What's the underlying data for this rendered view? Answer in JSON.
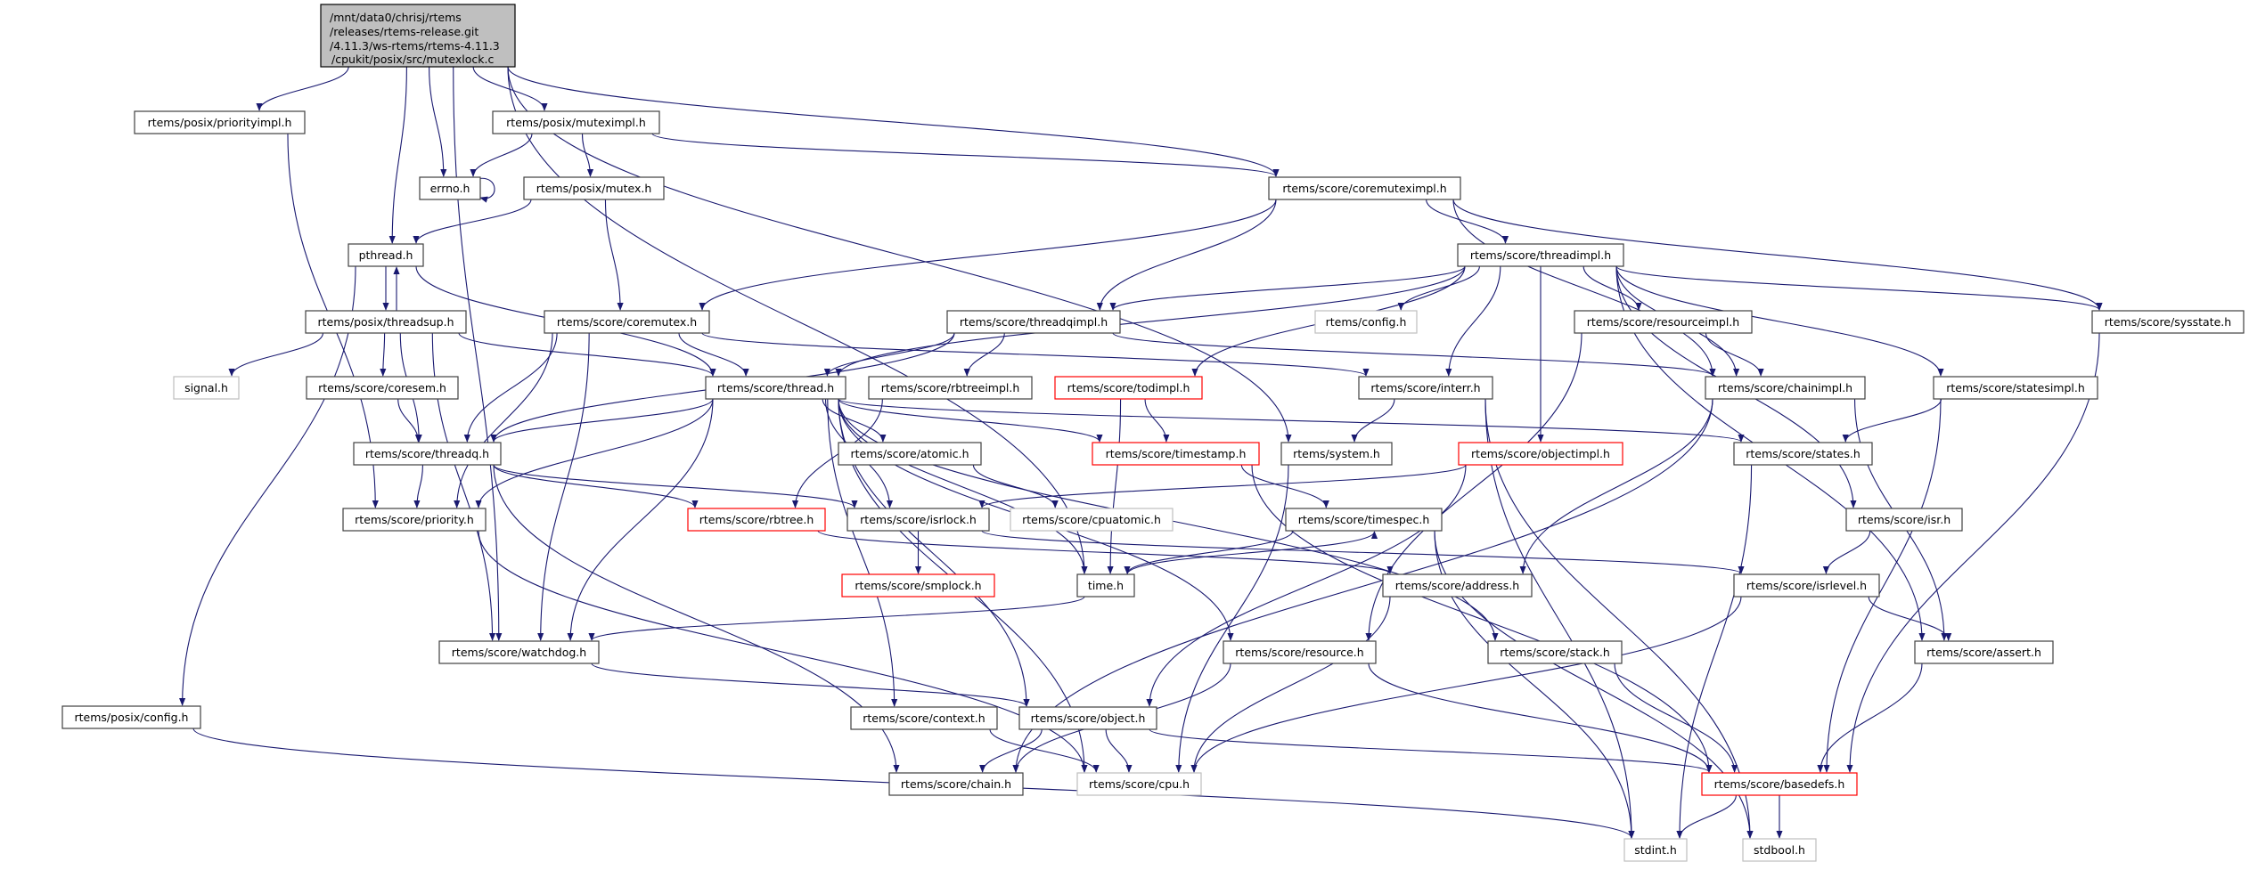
{
  "colors": {
    "edge": "#191970",
    "node_border": "#404040",
    "node_fill": "#ffffff",
    "root_fill": "#bfbfbf",
    "external_border": "#bfbfbf",
    "truncated_border": "#ff0000",
    "background": "#ffffff"
  },
  "graph": {
    "root": {
      "id": "main",
      "lines": [
        "/mnt/data0/chrisj/rtems",
        "/releases/rtems-release.git",
        "/4.11.3/ws-rtems/rtems-4.11.3",
        "/cpukit/posix/src/mutexlock.c"
      ]
    },
    "nodes": [
      {
        "id": "prioritimpl",
        "label": "rtems/posix/priorityimpl.h",
        "style": "normal"
      },
      {
        "id": "muteximpl",
        "label": "rtems/posix/muteximpl.h",
        "style": "normal"
      },
      {
        "id": "errno",
        "label": "errno.h",
        "style": "normal"
      },
      {
        "id": "mutex",
        "label": "rtems/posix/mutex.h",
        "style": "normal"
      },
      {
        "id": "coremuteximpl",
        "label": "rtems/score/coremuteximpl.h",
        "style": "normal"
      },
      {
        "id": "pthread",
        "label": "pthread.h",
        "style": "normal"
      },
      {
        "id": "threadimpl",
        "label": "rtems/score/threadimpl.h",
        "style": "normal"
      },
      {
        "id": "threadsup",
        "label": "rtems/posix/threadsup.h",
        "style": "normal"
      },
      {
        "id": "coremutex",
        "label": "rtems/score/coremutex.h",
        "style": "normal"
      },
      {
        "id": "threadqimpl",
        "label": "rtems/score/threadqimpl.h",
        "style": "normal"
      },
      {
        "id": "config",
        "label": "rtems/config.h",
        "style": "external"
      },
      {
        "id": "resourceimpl",
        "label": "rtems/score/resourceimpl.h",
        "style": "normal"
      },
      {
        "id": "sysstate",
        "label": "rtems/score/sysstate.h",
        "style": "normal"
      },
      {
        "id": "signal",
        "label": "signal.h",
        "style": "external"
      },
      {
        "id": "coresem",
        "label": "rtems/score/coresem.h",
        "style": "normal"
      },
      {
        "id": "thread",
        "label": "rtems/score/thread.h",
        "style": "normal"
      },
      {
        "id": "rbtreeimpl",
        "label": "rtems/score/rbtreeimpl.h",
        "style": "normal"
      },
      {
        "id": "todimpl",
        "label": "rtems/score/todimpl.h",
        "style": "truncated"
      },
      {
        "id": "interr",
        "label": "rtems/score/interr.h",
        "style": "normal"
      },
      {
        "id": "chainimpl",
        "label": "rtems/score/chainimpl.h",
        "style": "normal"
      },
      {
        "id": "statesimpl",
        "label": "rtems/score/statesimpl.h",
        "style": "normal"
      },
      {
        "id": "threadq",
        "label": "rtems/score/threadq.h",
        "style": "normal"
      },
      {
        "id": "atomic",
        "label": "rtems/score/atomic.h",
        "style": "normal"
      },
      {
        "id": "timestamp",
        "label": "rtems/score/timestamp.h",
        "style": "truncated"
      },
      {
        "id": "system",
        "label": "rtems/system.h",
        "style": "normal"
      },
      {
        "id": "objectimpl",
        "label": "rtems/score/objectimpl.h",
        "style": "truncated"
      },
      {
        "id": "states",
        "label": "rtems/score/states.h",
        "style": "normal"
      },
      {
        "id": "priority",
        "label": "rtems/score/priority.h",
        "style": "normal"
      },
      {
        "id": "rbtree",
        "label": "rtems/score/rbtree.h",
        "style": "truncated"
      },
      {
        "id": "isrlock",
        "label": "rtems/score/isrlock.h",
        "style": "normal"
      },
      {
        "id": "cpuatomic",
        "label": "rtems/score/cpuatomic.h",
        "style": "external"
      },
      {
        "id": "timespec",
        "label": "rtems/score/timespec.h",
        "style": "normal"
      },
      {
        "id": "isr",
        "label": "rtems/score/isr.h",
        "style": "normal"
      },
      {
        "id": "smplock",
        "label": "rtems/score/smplock.h",
        "style": "truncated"
      },
      {
        "id": "time",
        "label": "time.h",
        "style": "normal"
      },
      {
        "id": "address",
        "label": "rtems/score/address.h",
        "style": "normal"
      },
      {
        "id": "isrlevel",
        "label": "rtems/score/isrlevel.h",
        "style": "normal"
      },
      {
        "id": "watchdog",
        "label": "rtems/score/watchdog.h",
        "style": "normal"
      },
      {
        "id": "resource",
        "label": "rtems/score/resource.h",
        "style": "normal"
      },
      {
        "id": "stack",
        "label": "rtems/score/stack.h",
        "style": "normal"
      },
      {
        "id": "assert",
        "label": "rtems/score/assert.h",
        "style": "normal"
      },
      {
        "id": "posixconfig",
        "label": "rtems/posix/config.h",
        "style": "normal"
      },
      {
        "id": "context",
        "label": "rtems/score/context.h",
        "style": "normal"
      },
      {
        "id": "object",
        "label": "rtems/score/object.h",
        "style": "normal"
      },
      {
        "id": "chain",
        "label": "rtems/score/chain.h",
        "style": "normal"
      },
      {
        "id": "cpu",
        "label": "rtems/score/cpu.h",
        "style": "external"
      },
      {
        "id": "basedefs",
        "label": "rtems/score/basedefs.h",
        "style": "truncated"
      },
      {
        "id": "stdint",
        "label": "stdint.h",
        "style": "external"
      },
      {
        "id": "stdbool",
        "label": "stdbool.h",
        "style": "external"
      }
    ],
    "edges": [
      [
        "main",
        "prioritimpl"
      ],
      [
        "main",
        "muteximpl"
      ],
      [
        "main",
        "errno"
      ],
      [
        "main",
        "pthread"
      ],
      [
        "main",
        "coremuteximpl"
      ],
      [
        "main",
        "system"
      ],
      [
        "main",
        "time"
      ],
      [
        "main",
        "watchdog"
      ],
      [
        "prioritimpl",
        "priority"
      ],
      [
        "muteximpl",
        "errno"
      ],
      [
        "muteximpl",
        "mutex"
      ],
      [
        "muteximpl",
        "coremuteximpl"
      ],
      [
        "errno",
        "errno"
      ],
      [
        "mutex",
        "pthread"
      ],
      [
        "mutex",
        "coremutex"
      ],
      [
        "pthread",
        "threadsup"
      ],
      [
        "pthread",
        "thread"
      ],
      [
        "pthread",
        "posixconfig"
      ],
      [
        "threadsup",
        "pthread"
      ],
      [
        "threadsup",
        "signal"
      ],
      [
        "threadsup",
        "coresem"
      ],
      [
        "threadsup",
        "thread"
      ],
      [
        "threadsup",
        "threadq"
      ],
      [
        "threadsup",
        "watchdog"
      ],
      [
        "coremutex",
        "thread"
      ],
      [
        "coremutex",
        "threadq"
      ],
      [
        "coremutex",
        "priority"
      ],
      [
        "coremutex",
        "watchdog"
      ],
      [
        "coremutex",
        "interr"
      ],
      [
        "coresem",
        "threadq"
      ],
      [
        "posixconfig",
        "stdint"
      ],
      [
        "coremuteximpl",
        "coremutex"
      ],
      [
        "coremuteximpl",
        "threadqimpl"
      ],
      [
        "coremuteximpl",
        "threadimpl"
      ],
      [
        "coremuteximpl",
        "chainimpl"
      ],
      [
        "coremuteximpl",
        "sysstate"
      ],
      [
        "threadimpl",
        "threadqimpl"
      ],
      [
        "threadimpl",
        "config"
      ],
      [
        "threadimpl",
        "todimpl"
      ],
      [
        "threadimpl",
        "thread"
      ],
      [
        "threadimpl",
        "interr"
      ],
      [
        "threadimpl",
        "objectimpl"
      ],
      [
        "threadimpl",
        "resourceimpl"
      ],
      [
        "threadimpl",
        "chainimpl"
      ],
      [
        "threadimpl",
        "isr"
      ],
      [
        "threadimpl",
        "statesimpl"
      ],
      [
        "threadimpl",
        "sysstate"
      ],
      [
        "threadimpl",
        "assert"
      ],
      [
        "threadqimpl",
        "thread"
      ],
      [
        "threadqimpl",
        "threadq"
      ],
      [
        "threadqimpl",
        "rbtreeimpl"
      ],
      [
        "threadqimpl",
        "chainimpl"
      ],
      [
        "rbtreeimpl",
        "rbtree"
      ],
      [
        "todimpl",
        "timestamp"
      ],
      [
        "todimpl",
        "time"
      ],
      [
        "interr",
        "system"
      ],
      [
        "interr",
        "stdint"
      ],
      [
        "interr",
        "stdbool"
      ],
      [
        "resourceimpl",
        "chainimpl"
      ],
      [
        "resourceimpl",
        "resource"
      ],
      [
        "chainimpl",
        "address"
      ],
      [
        "chainimpl",
        "chain"
      ],
      [
        "chainimpl",
        "assert"
      ],
      [
        "statesimpl",
        "states"
      ],
      [
        "statesimpl",
        "basedefs"
      ],
      [
        "sysstate",
        "basedefs"
      ],
      [
        "thread",
        "threadq"
      ],
      [
        "thread",
        "priority"
      ],
      [
        "thread",
        "watchdog"
      ],
      [
        "thread",
        "atomic"
      ],
      [
        "thread",
        "isrlock"
      ],
      [
        "thread",
        "timestamp"
      ],
      [
        "thread",
        "states"
      ],
      [
        "thread",
        "object"
      ],
      [
        "thread",
        "context"
      ],
      [
        "thread",
        "resource"
      ],
      [
        "thread",
        "time"
      ],
      [
        "thread",
        "cpu"
      ],
      [
        "thread",
        "stack"
      ],
      [
        "threadq",
        "priority"
      ],
      [
        "threadq",
        "rbtree"
      ],
      [
        "threadq",
        "isrlock"
      ],
      [
        "threadq",
        "chain"
      ],
      [
        "priority",
        "cpu"
      ],
      [
        "atomic",
        "cpuatomic"
      ],
      [
        "timestamp",
        "timespec"
      ],
      [
        "timestamp",
        "basedefs"
      ],
      [
        "system",
        "cpu"
      ],
      [
        "objectimpl",
        "isrlock"
      ],
      [
        "objectimpl",
        "object"
      ],
      [
        "states",
        "stdint"
      ],
      [
        "isr",
        "isrlevel"
      ],
      [
        "isrlock",
        "smplock"
      ],
      [
        "isrlock",
        "isrlevel"
      ],
      [
        "rbtree",
        "address"
      ],
      [
        "timespec",
        "time"
      ],
      [
        "timespec",
        "stdint"
      ],
      [
        "timespec",
        "stdbool"
      ],
      [
        "time",
        "timespec"
      ],
      [
        "time",
        "watchdog"
      ],
      [
        "watchdog",
        "object"
      ],
      [
        "address",
        "cpu"
      ],
      [
        "isrlevel",
        "assert"
      ],
      [
        "isrlevel",
        "cpu"
      ],
      [
        "resource",
        "chain"
      ],
      [
        "resource",
        "basedefs"
      ],
      [
        "stack",
        "basedefs"
      ],
      [
        "assert",
        "basedefs"
      ],
      [
        "context",
        "cpu"
      ],
      [
        "object",
        "chain"
      ],
      [
        "object",
        "cpu"
      ],
      [
        "object",
        "basedefs"
      ],
      [
        "basedefs",
        "stdint"
      ],
      [
        "basedefs",
        "stdbool"
      ]
    ]
  }
}
